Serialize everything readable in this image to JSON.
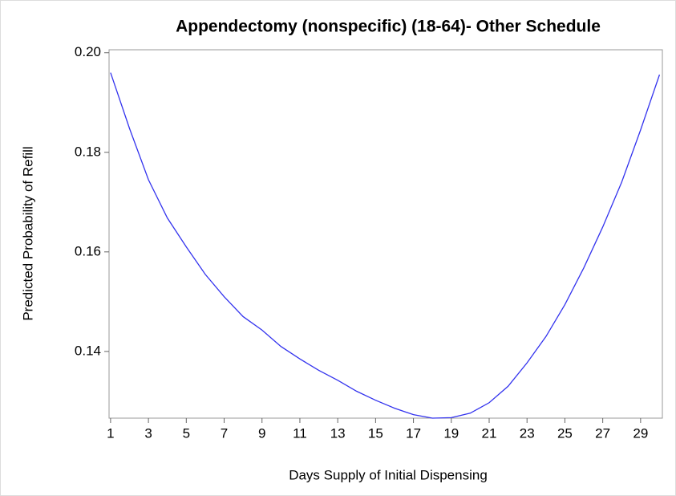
{
  "chart_data": {
    "type": "line",
    "title": "Appendectomy (nonspecific) (18-64)- Other Schedule",
    "xlabel": "Days Supply of Initial Dispensing",
    "ylabel": "Predicted Probability of Refill",
    "x": [
      1,
      2,
      3,
      4,
      5,
      6,
      7,
      8,
      9,
      10,
      11,
      12,
      13,
      14,
      15,
      16,
      17,
      18,
      19,
      20,
      21,
      22,
      23,
      24,
      25,
      26,
      27,
      28,
      29,
      30
    ],
    "values": [
      0.196,
      0.1848,
      0.1745,
      0.1668,
      0.161,
      0.1555,
      0.151,
      0.147,
      0.1443,
      0.141,
      0.1385,
      0.1362,
      0.1342,
      0.132,
      0.1302,
      0.1286,
      0.1273,
      0.1266,
      0.1267,
      0.1276,
      0.1297,
      0.133,
      0.1377,
      0.143,
      0.1494,
      0.1568,
      0.165,
      0.174,
      0.1845,
      0.1956
    ],
    "color": "#3333ee",
    "xlim": [
      0.92,
      30.15
    ],
    "ylim": [
      0.1266,
      0.2006
    ],
    "xticks": [
      1,
      3,
      5,
      7,
      9,
      11,
      13,
      15,
      17,
      19,
      21,
      23,
      25,
      27,
      29
    ],
    "yticks": [
      {
        "value": 0.2,
        "label": "0.20"
      },
      0.18,
      0.16,
      0.14
    ]
  }
}
